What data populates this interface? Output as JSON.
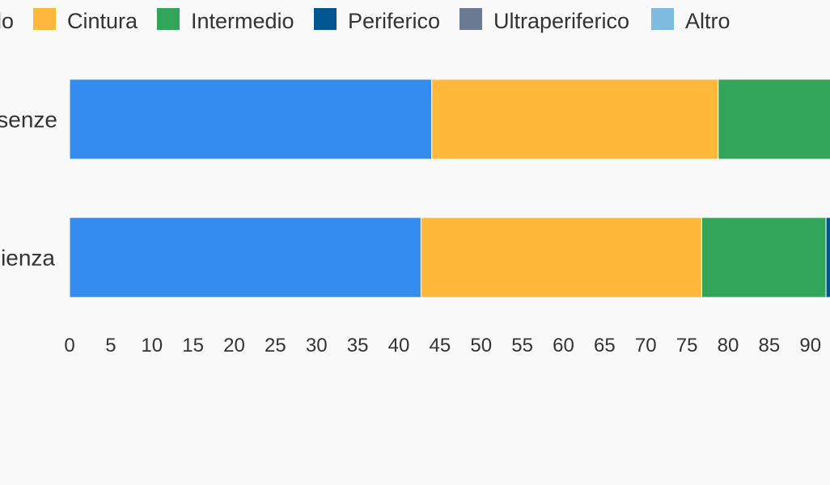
{
  "chart_data": {
    "type": "bar",
    "orientation": "horizontal",
    "stacked": true,
    "categories": [
      "Presenze",
      "Residenza"
    ],
    "categories_visible": [
      "senze",
      "ienza"
    ],
    "series": [
      {
        "name": "Nucleo",
        "visible_label": "lo",
        "color": "#348cee",
        "values": [
          44.0,
          42.7
        ]
      },
      {
        "name": "Cintura",
        "visible_label": "Cintura",
        "color": "#ffb83a",
        "values": [
          34.8,
          34.1
        ]
      },
      {
        "name": "Intermedio",
        "visible_label": "Intermedio",
        "color": "#33a55b",
        "values": [
          21.2,
          15.1
        ]
      },
      {
        "name": "Periferico",
        "visible_label": "Periferico",
        "color": "#005691",
        "values": [
          0,
          8.1
        ]
      },
      {
        "name": "Ultraperiferico",
        "visible_label": "Ultraperiferico",
        "color": "#6a7a91",
        "values": [
          0,
          0
        ]
      },
      {
        "name": "Altro",
        "visible_label": "Altro",
        "color": "#7fbadf",
        "values": [
          0,
          0
        ]
      }
    ],
    "xticks": [
      "0",
      "5",
      "10",
      "15",
      "20",
      "25",
      "30",
      "35",
      "40",
      "45",
      "50",
      "55",
      "60",
      "65",
      "70",
      "75",
      "80",
      "85",
      "90"
    ],
    "xlim": [
      0,
      100
    ],
    "title": "",
    "xlabel": "",
    "ylabel": "",
    "grid": false,
    "legend_position": "top"
  }
}
